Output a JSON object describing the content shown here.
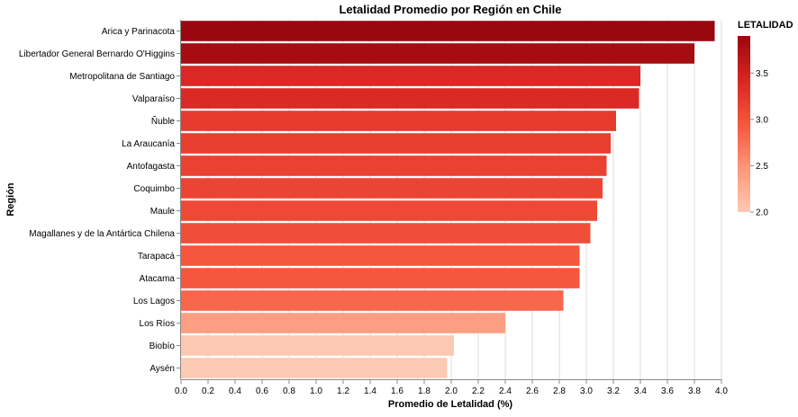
{
  "chart_data": {
    "type": "bar",
    "orientation": "horizontal",
    "title": "Letalidad Promedio por Región en Chile",
    "xlabel": "Promedio de Letalidad (%)",
    "ylabel": "Región",
    "xlim": [
      0,
      4.0
    ],
    "xticks": [
      "0.0",
      "0.2",
      "0.4",
      "0.6",
      "0.8",
      "1.0",
      "1.2",
      "1.4",
      "1.6",
      "1.8",
      "2.0",
      "2.2",
      "2.4",
      "2.6",
      "2.8",
      "3.0",
      "3.2",
      "3.4",
      "3.6",
      "3.8",
      "4.0"
    ],
    "grid": true,
    "categories": [
      "Arica y Parinacota",
      "Libertador General Bernardo O'Higgins",
      "Metropolitana de Santiago",
      "Valparaíso",
      "Ñuble",
      "La Araucanía",
      "Antofagasta",
      "Coquimbo",
      "Maule",
      "Magallanes y de la Antártica Chilena",
      "Tarapacá",
      "Atacama",
      "Los Lagos",
      "Los Ríos",
      "Biobío",
      "Aysén"
    ],
    "values": [
      3.95,
      3.8,
      3.4,
      3.39,
      3.22,
      3.18,
      3.15,
      3.12,
      3.08,
      3.03,
      2.95,
      2.95,
      2.83,
      2.4,
      2.02,
      1.97
    ],
    "legend": {
      "title": "LETALIDAD",
      "placement": "right",
      "domain": [
        2.0,
        3.9
      ],
      "ticks": [
        "3.5",
        "3.0",
        "2.5",
        "2.0"
      ],
      "colors": [
        "#fdcab4",
        "#fc9678",
        "#f6563d",
        "#d92523",
        "#99070f"
      ]
    }
  }
}
